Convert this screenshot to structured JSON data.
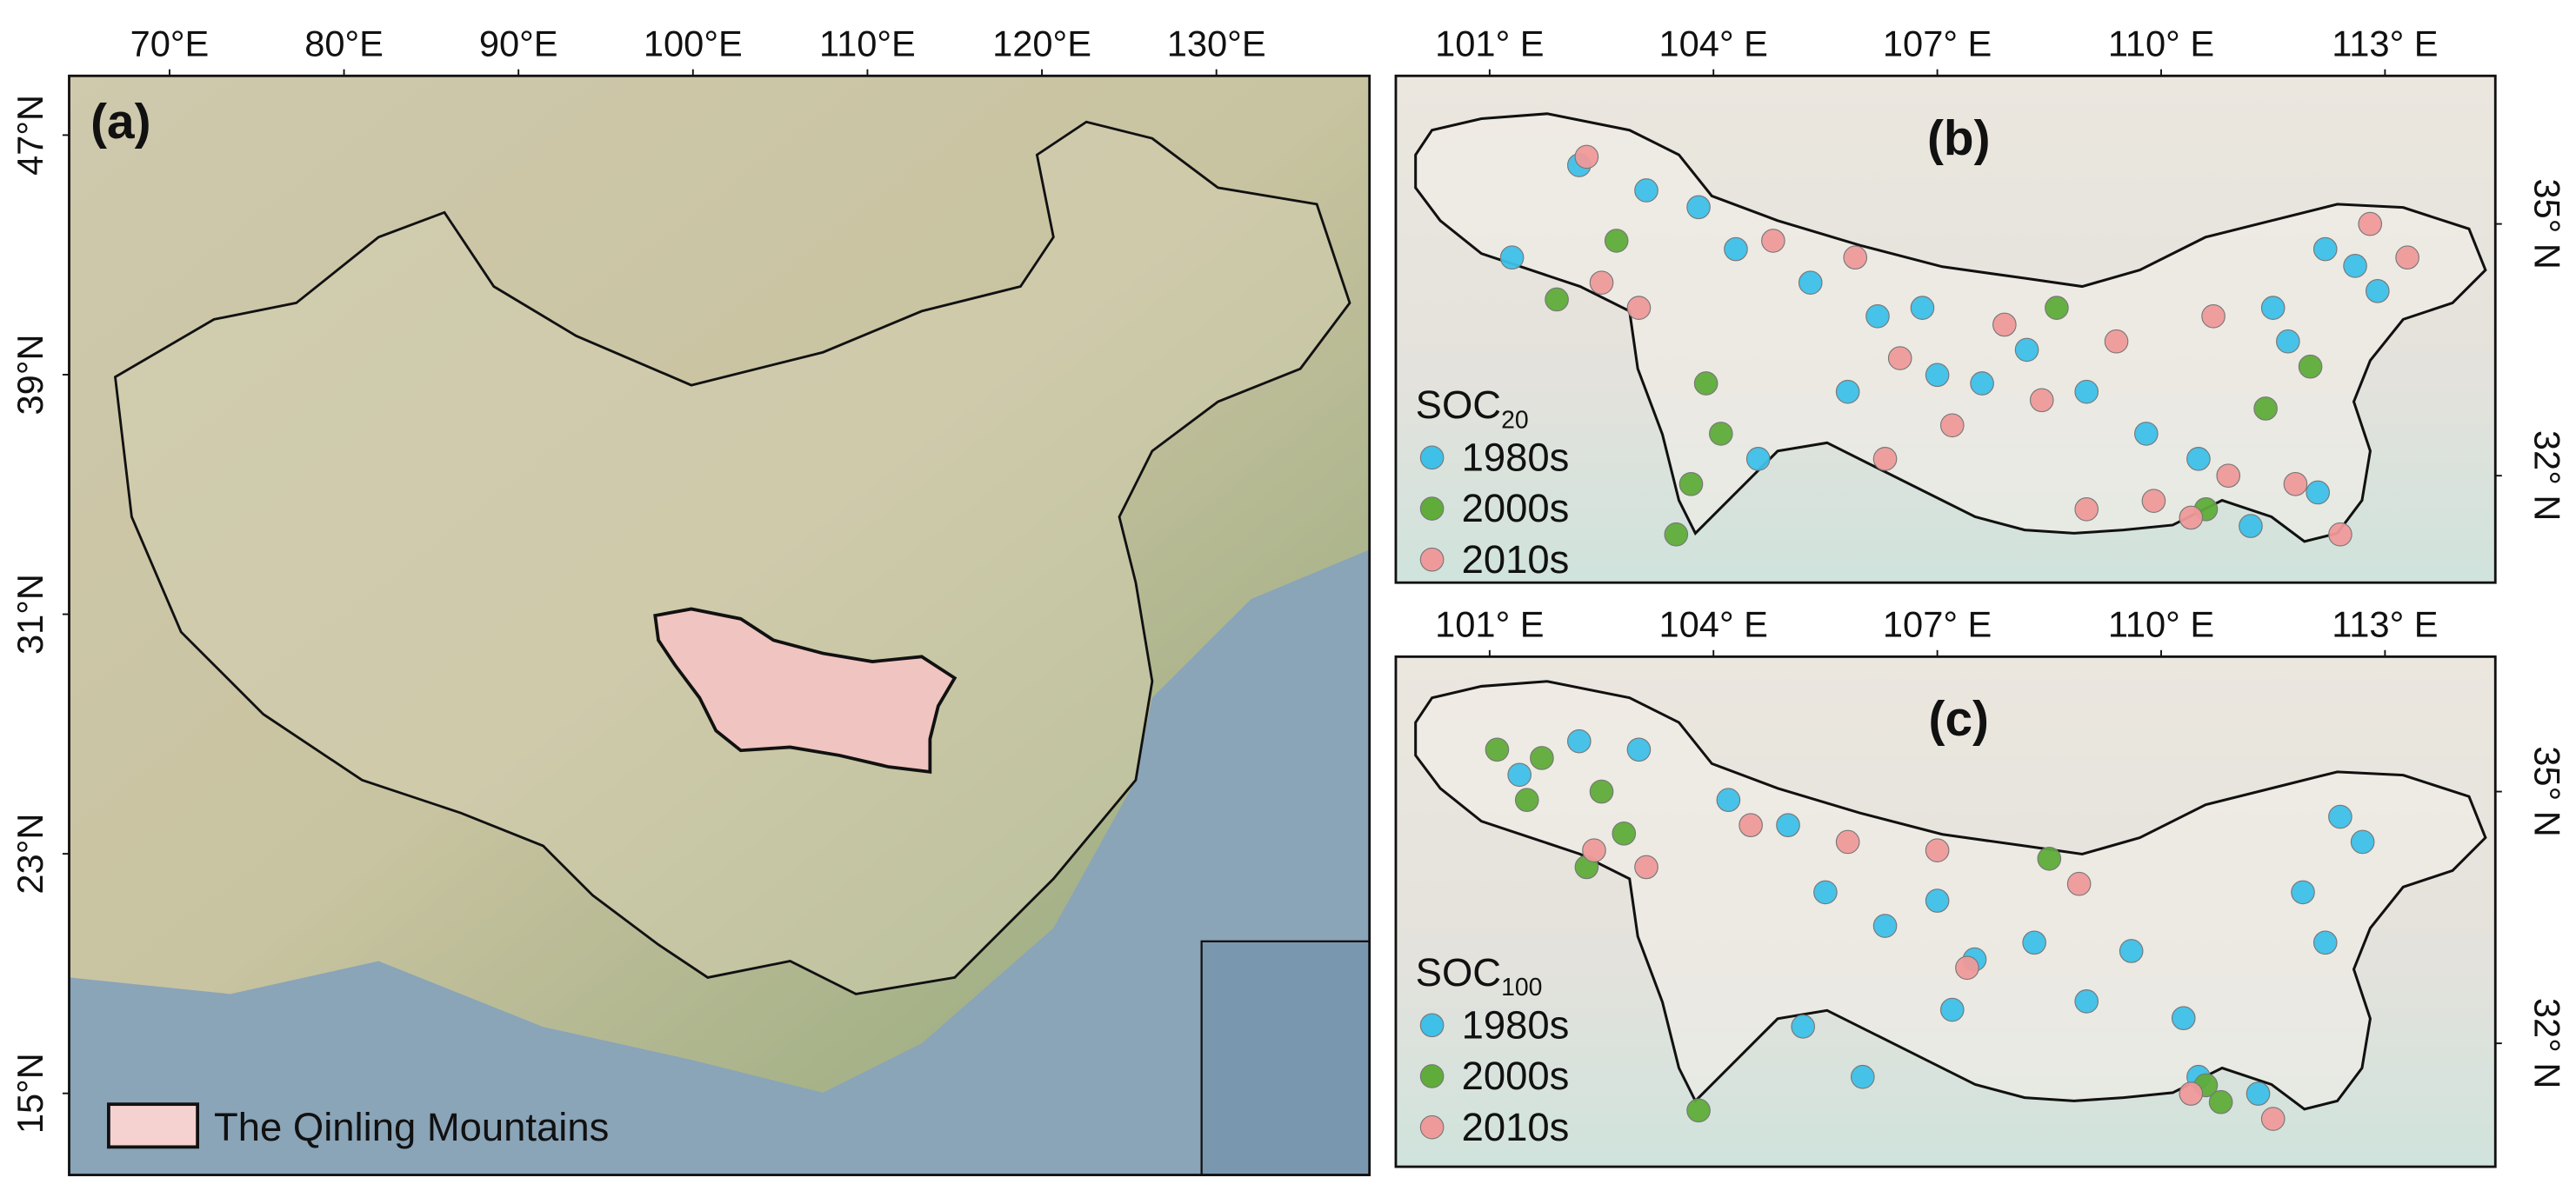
{
  "panels": [
    {
      "label": "(a)",
      "xticks": [
        {
          "value": 70,
          "label": "70°E"
        },
        {
          "value": 80,
          "label": "80°E"
        },
        {
          "value": 90,
          "label": "90°E"
        },
        {
          "value": 100,
          "label": "100°E"
        },
        {
          "value": 110,
          "label": "110°E"
        },
        {
          "value": 120,
          "label": "120°E"
        },
        {
          "value": 130,
          "label": "130°E"
        }
      ],
      "yticks": [
        {
          "value": 47,
          "label": "47°N"
        },
        {
          "value": 39,
          "label": "39°N"
        },
        {
          "value": 31,
          "label": "31°N"
        },
        {
          "value": 23,
          "label": "23°N"
        },
        {
          "value": 15,
          "label": "15°N"
        }
      ],
      "legend": "The Qinling Mountains"
    },
    {
      "label": "(b)",
      "xticks": [
        {
          "value": 101,
          "label": "101° E"
        },
        {
          "value": 104,
          "label": "104° E"
        },
        {
          "value": 107,
          "label": "107° E"
        },
        {
          "value": 110,
          "label": "110° E"
        },
        {
          "value": 113,
          "label": "113° E"
        }
      ],
      "yticks": [
        {
          "value": 35,
          "label": "35° N"
        },
        {
          "value": 32,
          "label": "32° N"
        }
      ],
      "legend_title": "SOC",
      "legend_title_sub": "20",
      "series": [
        {
          "name": "1980s",
          "color": "#3ec0e8",
          "points": [
            [
              101.3,
              34.6
            ],
            [
              102.2,
              35.7
            ],
            [
              103.1,
              35.4
            ],
            [
              103.8,
              35.2
            ],
            [
              104.3,
              34.7
            ],
            [
              105.3,
              34.3
            ],
            [
              106.2,
              33.9
            ],
            [
              107.0,
              33.2
            ],
            [
              107.6,
              33.1
            ],
            [
              108.2,
              33.5
            ],
            [
              109.0,
              33.0
            ],
            [
              109.8,
              32.5
            ],
            [
              110.5,
              32.2
            ],
            [
              111.2,
              31.4
            ],
            [
              111.7,
              33.6
            ],
            [
              112.2,
              34.7
            ],
            [
              112.6,
              34.5
            ],
            [
              112.9,
              34.2
            ],
            [
              111.5,
              34.0
            ],
            [
              106.8,
              34.0
            ],
            [
              104.6,
              32.2
            ],
            [
              112.1,
              31.8
            ],
            [
              105.8,
              33.0
            ]
          ]
        },
        {
          "name": "2000s",
          "color": "#5fac3a",
          "points": [
            [
              101.9,
              34.1
            ],
            [
              102.7,
              34.8
            ],
            [
              103.9,
              33.1
            ],
            [
              104.1,
              32.5
            ],
            [
              103.7,
              31.9
            ],
            [
              103.5,
              31.3
            ],
            [
              108.6,
              34.0
            ],
            [
              110.6,
              31.6
            ],
            [
              111.4,
              32.8
            ],
            [
              112.0,
              33.3
            ]
          ]
        },
        {
          "name": "2010s",
          "color": "#ef9a9a",
          "points": [
            [
              102.3,
              35.8
            ],
            [
              102.5,
              34.3
            ],
            [
              103.0,
              34.0
            ],
            [
              104.8,
              34.8
            ],
            [
              105.9,
              34.6
            ],
            [
              106.5,
              33.4
            ],
            [
              107.2,
              32.6
            ],
            [
              107.9,
              33.8
            ],
            [
              108.4,
              32.9
            ],
            [
              109.4,
              33.6
            ],
            [
              109.9,
              31.7
            ],
            [
              110.4,
              31.5
            ],
            [
              110.9,
              32.0
            ],
            [
              111.8,
              31.9
            ],
            [
              112.4,
              31.3
            ],
            [
              112.8,
              35.0
            ],
            [
              113.3,
              34.6
            ],
            [
              106.3,
              32.2
            ],
            [
              109.0,
              31.6
            ],
            [
              110.7,
              33.9
            ]
          ]
        }
      ]
    },
    {
      "label": "(c)",
      "xticks": [
        {
          "value": 101,
          "label": "101° E"
        },
        {
          "value": 104,
          "label": "104° E"
        },
        {
          "value": 107,
          "label": "107° E"
        },
        {
          "value": 110,
          "label": "110° E"
        },
        {
          "value": 113,
          "label": "113° E"
        }
      ],
      "yticks": [
        {
          "value": 35,
          "label": "35° N"
        },
        {
          "value": 32,
          "label": "32° N"
        }
      ],
      "legend_title": "SOC",
      "legend_title_sub": "100",
      "series": [
        {
          "name": "1980s",
          "color": "#3ec0e8",
          "points": [
            [
              101.4,
              35.2
            ],
            [
              102.2,
              35.6
            ],
            [
              103.0,
              35.5
            ],
            [
              104.2,
              34.9
            ],
            [
              105.0,
              34.6
            ],
            [
              105.5,
              33.8
            ],
            [
              106.3,
              33.4
            ],
            [
              107.0,
              33.7
            ],
            [
              107.5,
              33.0
            ],
            [
              108.3,
              33.2
            ],
            [
              109.0,
              32.5
            ],
            [
              109.6,
              33.1
            ],
            [
              110.3,
              32.3
            ],
            [
              110.5,
              31.6
            ],
            [
              111.3,
              31.4
            ],
            [
              111.9,
              33.8
            ],
            [
              112.4,
              34.7
            ],
            [
              112.7,
              34.4
            ],
            [
              112.2,
              33.2
            ],
            [
              105.2,
              32.2
            ],
            [
              106.0,
              31.6
            ],
            [
              107.2,
              32.4
            ]
          ]
        },
        {
          "name": "2000s",
          "color": "#5fac3a",
          "points": [
            [
              101.1,
              35.5
            ],
            [
              101.7,
              35.4
            ],
            [
              101.5,
              34.9
            ],
            [
              102.5,
              35.0
            ],
            [
              102.8,
              34.5
            ],
            [
              102.3,
              34.1
            ],
            [
              103.8,
              31.2
            ],
            [
              108.5,
              34.2
            ],
            [
              110.6,
              31.5
            ],
            [
              110.8,
              31.3
            ]
          ]
        },
        {
          "name": "2010s",
          "color": "#ef9a9a",
          "points": [
            [
              102.4,
              34.3
            ],
            [
              103.1,
              34.1
            ],
            [
              105.8,
              34.4
            ],
            [
              107.0,
              34.3
            ],
            [
              107.4,
              32.9
            ],
            [
              108.9,
              33.9
            ],
            [
              110.4,
              31.4
            ],
            [
              111.5,
              31.1
            ],
            [
              104.5,
              34.6
            ]
          ]
        }
      ]
    }
  ]
}
